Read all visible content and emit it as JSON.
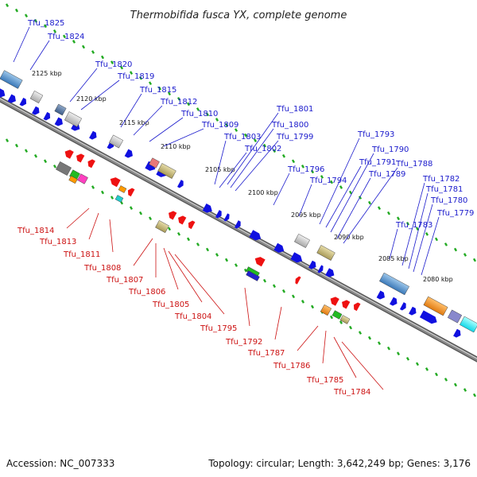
{
  "title": "Thermobifida fusca YX, complete genome",
  "footer": {
    "accession": "Accession: NC_007333",
    "summary": "Topology: circular; Length: 3,642,249 bp; Genes: 3,176"
  },
  "scale": [
    "2125 kbp",
    "2120 kbp",
    "2115 kbp",
    "2110 kbp",
    "2105 kbp",
    "2100 kbp",
    "2095 kbp",
    "2090 kbp",
    "2085 kbp",
    "2080 kbp"
  ],
  "top_genes": [
    "Tfu_1825",
    "Tfu_1824",
    "Tfu_1820",
    "Tfu_1819",
    "Tfu_1815",
    "Tfu_1812",
    "Tfu_1810",
    "Tfu_1809",
    "Tfu_1803",
    "Tfu_1802",
    "Tfu_1801",
    "Tfu_1800",
    "Tfu_1799",
    "Tfu_1796",
    "Tfu_1794",
    "Tfu_1793",
    "Tfu_1791",
    "Tfu_1790",
    "Tfu_1789",
    "Tfu_1788",
    "Tfu_1783",
    "Tfu_1782",
    "Tfu_1781",
    "Tfu_1780",
    "Tfu_1779"
  ],
  "bottom_genes": [
    "Tfu_1814",
    "Tfu_1813",
    "Tfu_1811",
    "Tfu_1808",
    "Tfu_1807",
    "Tfu_1806",
    "Tfu_1805",
    "Tfu_1804",
    "Tfu_1795",
    "Tfu_1792",
    "Tfu_1787",
    "Tfu_1786",
    "Tfu_1785",
    "Tfu_1784"
  ],
  "colors": {
    "forward": "#1010e0",
    "reverse": "#ee1111",
    "top_label": "#1a1acc",
    "bottom_label": "#cc1111",
    "backbone": "#888888",
    "tick": "#22aa22"
  }
}
